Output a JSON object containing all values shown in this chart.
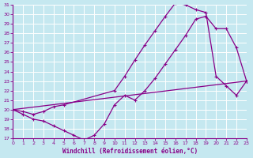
{
  "background_color": "#c5e8f0",
  "line_color": "#880088",
  "grid_color": "#ffffff",
  "xlim": [
    0,
    23
  ],
  "ylim": [
    17,
    31
  ],
  "yticks": [
    17,
    18,
    19,
    20,
    21,
    22,
    23,
    24,
    25,
    26,
    27,
    28,
    29,
    30,
    31
  ],
  "xticks": [
    0,
    1,
    2,
    3,
    4,
    5,
    6,
    7,
    8,
    9,
    10,
    11,
    12,
    13,
    14,
    15,
    16,
    17,
    18,
    19,
    20,
    21,
    22,
    23
  ],
  "xlabel": "Windchill (Refroidissement éolien,°C)",
  "series1_x": [
    0,
    1,
    2,
    3,
    4,
    5,
    6,
    7,
    8,
    9,
    10,
    11,
    12,
    13,
    14,
    15,
    16,
    17,
    18,
    19,
    20,
    21,
    22,
    23
  ],
  "series1_y": [
    20.0,
    19.5,
    19.0,
    18.8,
    18.3,
    17.8,
    17.3,
    16.8,
    17.3,
    18.5,
    20.5,
    21.5,
    21.0,
    22.0,
    23.3,
    24.8,
    26.3,
    27.8,
    29.5,
    29.8,
    28.5,
    28.5,
    26.5,
    23.0
  ],
  "series2_x": [
    0,
    1,
    2,
    3,
    4,
    5,
    10,
    11,
    12,
    13,
    14,
    15,
    16,
    17,
    18,
    19,
    20,
    21,
    22,
    23
  ],
  "series2_y": [
    20.0,
    19.8,
    19.5,
    19.8,
    20.3,
    20.5,
    22.0,
    23.5,
    25.2,
    26.8,
    28.3,
    29.8,
    31.2,
    31.0,
    30.5,
    30.2,
    23.5,
    22.5,
    21.5,
    23.0
  ],
  "series3_x": [
    0,
    23
  ],
  "series3_y": [
    20.0,
    23.0
  ]
}
